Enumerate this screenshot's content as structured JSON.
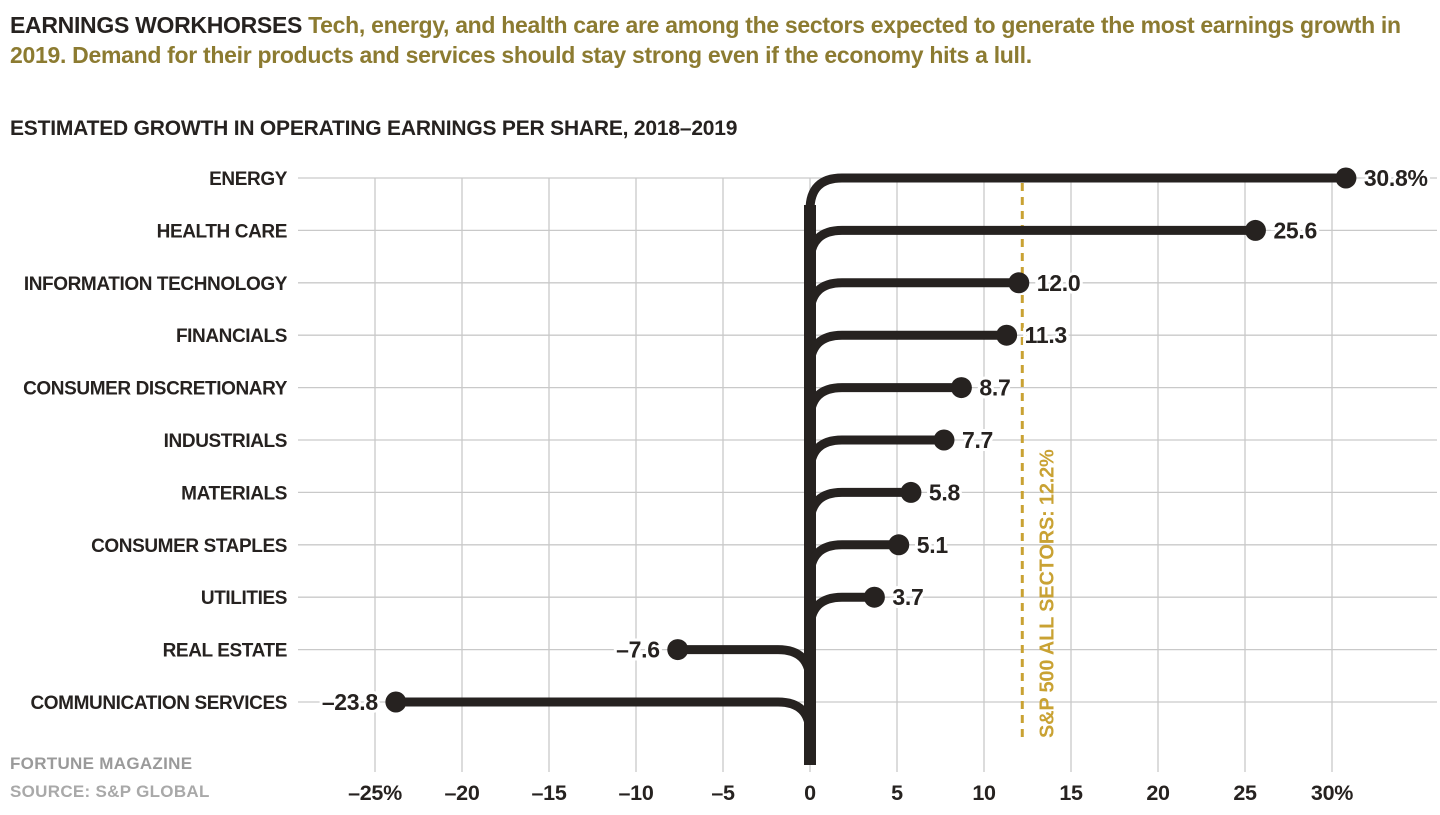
{
  "header": {
    "title": "EARNINGS WORKHORSES",
    "subtitle": "Tech, energy, and health care are among the sectors expected to generate the most earnings growth in 2019. Demand for their products and services should stay strong even if the economy hits a lull."
  },
  "chart_title": "ESTIMATED GROWTH IN OPERATING EARNINGS PER SHARE, 2018–2019",
  "footer": {
    "credit": "FORTUNE MAGAZINE",
    "source": "SOURCE: S&P GLOBAL"
  },
  "colors": {
    "black": "#262220",
    "header_gold": "#8c7b31",
    "reference_gold": "#c9a233",
    "grid": "#c9c9c9",
    "footer_gray": "#9a9a9a"
  },
  "chart_data": {
    "type": "lollipop",
    "title": "ESTIMATED GROWTH IN OPERATING EARNINGS PER SHARE, 2018–2019",
    "categories": [
      "ENERGY",
      "HEALTH CARE",
      "INFORMATION TECHNOLOGY",
      "FINANCIALS",
      "CONSUMER DISCRETIONARY",
      "INDUSTRIALS",
      "MATERIALS",
      "CONSUMER STAPLES",
      "UTILITIES",
      "REAL ESTATE",
      "COMMUNICATION SERVICES"
    ],
    "values": [
      30.8,
      25.6,
      12.0,
      11.3,
      8.7,
      7.7,
      5.8,
      5.1,
      3.7,
      -7.6,
      -23.8
    ],
    "value_labels": [
      "30.8%",
      "25.6",
      "12.0",
      "11.3",
      "8.7",
      "7.7",
      "5.8",
      "5.1",
      "3.7",
      "–7.6",
      "–23.8"
    ],
    "xlabel": "",
    "ylabel": "",
    "xlim": [
      -25,
      30
    ],
    "x_ticks": [
      -25,
      -20,
      -15,
      -10,
      -5,
      0,
      5,
      10,
      15,
      20,
      25,
      30
    ],
    "x_tick_labels": [
      "–25%",
      "–20",
      "–15",
      "–10",
      "–5",
      "0",
      "5",
      "10",
      "15",
      "20",
      "25",
      "30%"
    ],
    "grid": true,
    "reference_line": {
      "value": 12.2,
      "label": "S&P 500 ALL SECTORS: 12.2%"
    }
  }
}
